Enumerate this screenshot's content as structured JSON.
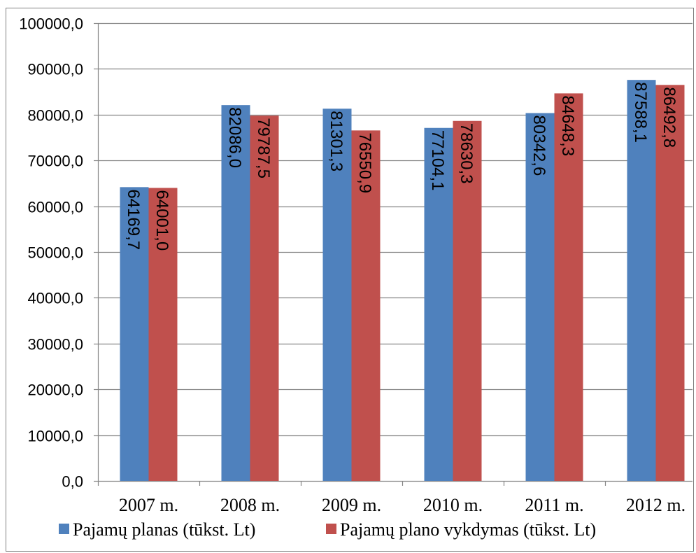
{
  "chart_data": {
    "type": "bar",
    "categories": [
      "2007 m.",
      "2008 m.",
      "2009 m.",
      "2010 m.",
      "2011 m.",
      "2012 m."
    ],
    "series": [
      {
        "name": "Pajamų planas (tūkst. Lt)",
        "color": "#4F81BD",
        "values": [
          64169.7,
          82086.0,
          81301.3,
          77104.1,
          80342.6,
          87588.1
        ],
        "labels": [
          "64169,7",
          "82086,0",
          "81301,3",
          "77104,1",
          "80342,6",
          "87588,1"
        ]
      },
      {
        "name": "Pajamų plano vykdymas (tūkst. Lt)",
        "color": "#C0504D",
        "values": [
          64001.0,
          79787.5,
          76550.9,
          78630.3,
          84648.3,
          86492.8
        ],
        "labels": [
          "64001,0",
          "79787,5",
          "76550,9",
          "78630,3",
          "84648,3",
          "86492,8"
        ]
      }
    ],
    "y_ticks": [
      "0,0",
      "10000,0",
      "20000,0",
      "30000,0",
      "40000,0",
      "50000,0",
      "60000,0",
      "70000,0",
      "80000,0",
      "90000,0",
      "100000,0"
    ],
    "ylim": [
      0,
      100000
    ],
    "grid": true,
    "legend_position": "bottom"
  }
}
